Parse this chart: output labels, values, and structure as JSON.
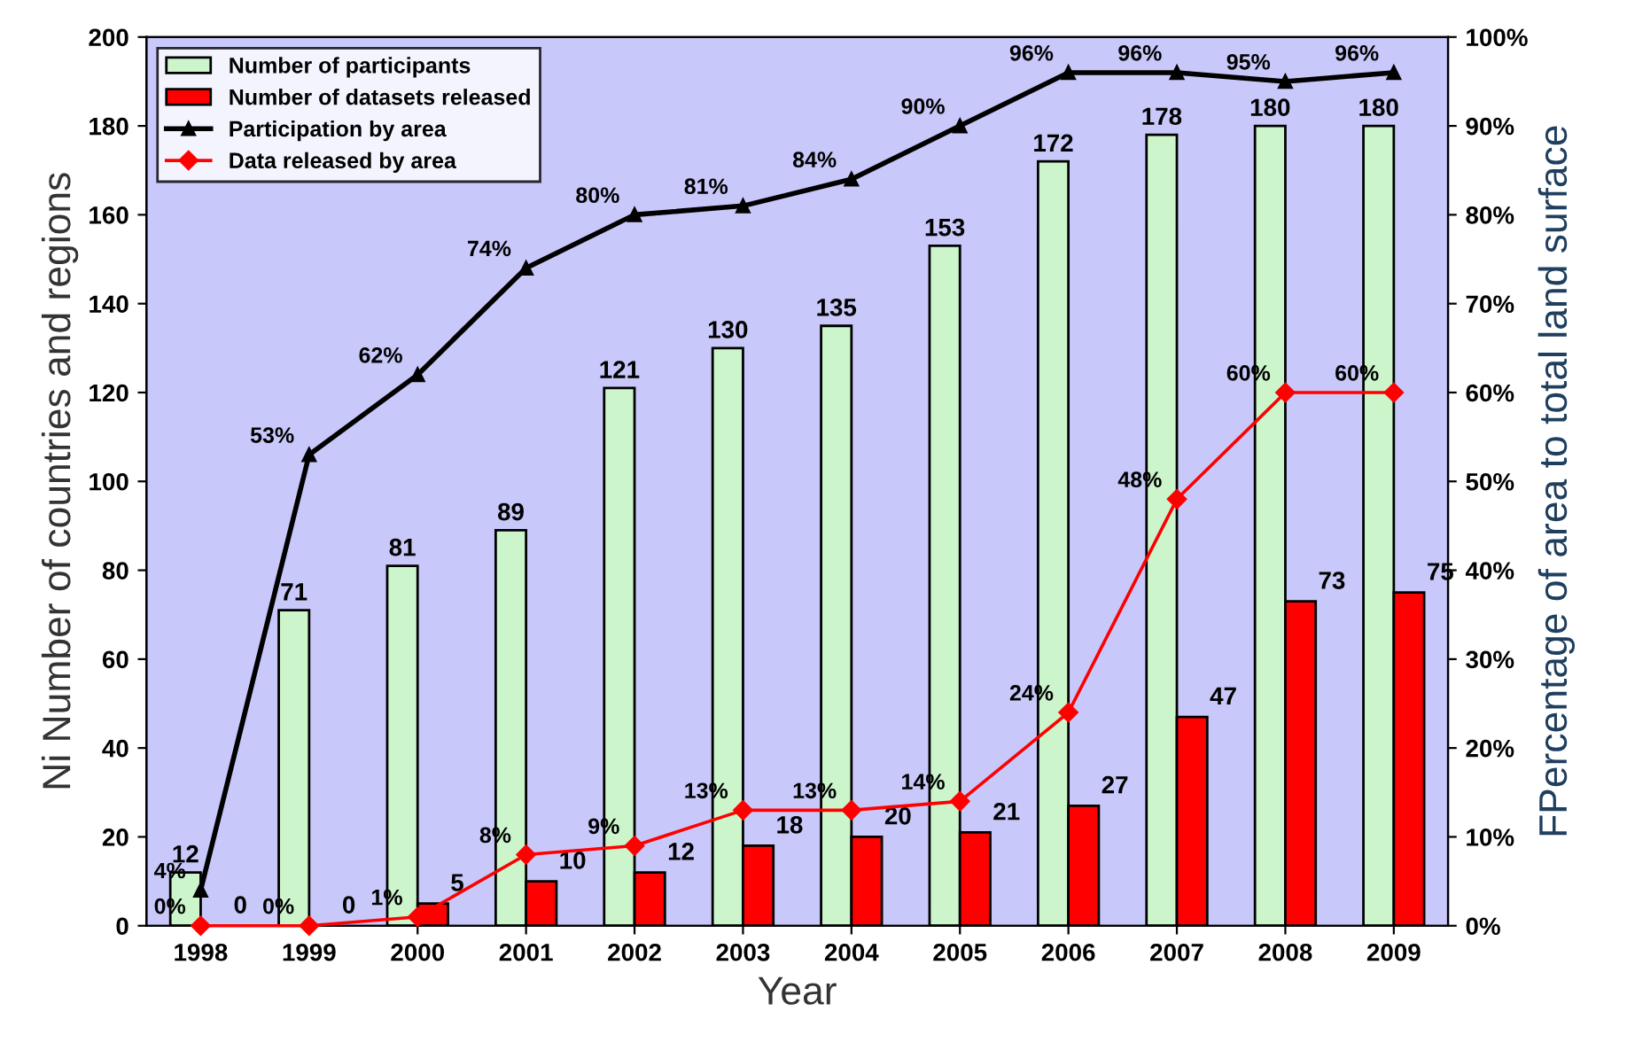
{
  "chart_data": {
    "type": "bar",
    "xlabel": "Year",
    "ylabel": "Ni Number of countries and regions",
    "y2label": "FPercentage of area to total land surface",
    "categories": [
      "1998",
      "1999",
      "2000",
      "2001",
      "2002",
      "2003",
      "2004",
      "2005",
      "2006",
      "2007",
      "2008",
      "2009"
    ],
    "series": [
      {
        "name": "Number of participants",
        "color": "#ccf5cc",
        "values": [
          12,
          71,
          81,
          89,
          121,
          130,
          135,
          153,
          172,
          178,
          180,
          180
        ],
        "data_labels": true
      },
      {
        "name": "Number of datasets released",
        "color": "#ff0000",
        "values": [
          0,
          0,
          5,
          10,
          12,
          18,
          20,
          21,
          27,
          47,
          73,
          75
        ],
        "data_labels": true
      },
      {
        "name": "Participation by area",
        "type": "line",
        "axis": "y2",
        "color": "#000000",
        "marker": "triangle",
        "values": [
          4,
          53,
          62,
          74,
          80,
          81,
          84,
          90,
          96,
          96,
          95,
          96
        ],
        "value_labels": [
          "4%",
          "53%",
          "62%",
          "74%",
          "80%",
          "81%",
          "84%",
          "90%",
          "96%",
          "96%",
          "95%",
          "96%"
        ]
      },
      {
        "name": "Data released by area",
        "type": "line",
        "axis": "y2",
        "color": "#ff0000",
        "marker": "diamond",
        "values": [
          0,
          0,
          1,
          8,
          9,
          13,
          13,
          14,
          24,
          48,
          60,
          60
        ],
        "value_labels": [
          "0%",
          "0%",
          "1%",
          "8%",
          "9%",
          "13%",
          "13%",
          "14%",
          "24%",
          "48%",
          "60%",
          "60%"
        ]
      }
    ],
    "ylim": [
      0,
      200
    ],
    "yticks": [
      0,
      20,
      40,
      60,
      80,
      100,
      120,
      140,
      160,
      180,
      200
    ],
    "y2lim": [
      0,
      100
    ],
    "y2ticks": [
      {
        "value": 0,
        "label": "0%"
      },
      {
        "value": 10,
        "label": "10%"
      },
      {
        "value": 20,
        "label": "20%"
      },
      {
        "value": 30,
        "label": "30%"
      },
      {
        "value": 40,
        "label": "40%"
      },
      {
        "value": 50,
        "label": "50%"
      },
      {
        "value": 60,
        "label": "60%"
      },
      {
        "value": 70,
        "label": "70%"
      },
      {
        "value": 80,
        "label": "80%"
      },
      {
        "value": 90,
        "label": "90%"
      },
      {
        "value": 100,
        "label": "100%"
      }
    ],
    "grid": false,
    "legend": "top left"
  }
}
